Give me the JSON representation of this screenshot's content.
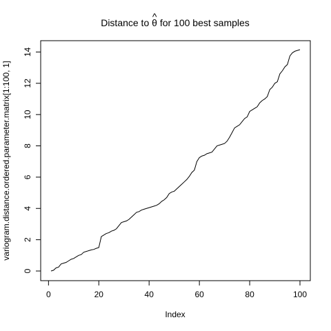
{
  "chart_data": {
    "type": "line",
    "title_prefix": "Distance to ",
    "title_symbol": "θ",
    "title_hat": "^",
    "title_suffix": " for 100 best samples",
    "xlabel": "Index",
    "ylabel": "variogram.distance.ordered.parameter.matrix[1:100, 1]",
    "xlim": [
      1,
      100
    ],
    "ylim": [
      0,
      14.15
    ],
    "xticks": [
      0,
      20,
      40,
      60,
      80,
      100
    ],
    "yticks": [
      0,
      2,
      4,
      6,
      8,
      10,
      12,
      14
    ],
    "grid": false,
    "legend": "none",
    "line_color": "#000000",
    "x": [
      1,
      2,
      3,
      4,
      5,
      6,
      7,
      8,
      9,
      10,
      11,
      12,
      13,
      14,
      15,
      16,
      17,
      18,
      19,
      20,
      21,
      22,
      23,
      24,
      25,
      26,
      27,
      28,
      29,
      30,
      31,
      32,
      33,
      34,
      35,
      36,
      37,
      38,
      39,
      40,
      41,
      42,
      43,
      44,
      45,
      46,
      47,
      48,
      49,
      50,
      51,
      52,
      53,
      54,
      55,
      56,
      57,
      58,
      59,
      60,
      61,
      62,
      63,
      64,
      65,
      66,
      67,
      68,
      69,
      70,
      71,
      72,
      73,
      74,
      75,
      76,
      77,
      78,
      79,
      80,
      81,
      82,
      83,
      84,
      85,
      86,
      87,
      88,
      89,
      90,
      91,
      92,
      93,
      94,
      95,
      96,
      97,
      98,
      99,
      100
    ],
    "y": [
      0.0,
      0.05,
      0.2,
      0.25,
      0.45,
      0.5,
      0.55,
      0.65,
      0.75,
      0.8,
      0.9,
      1.0,
      1.05,
      1.2,
      1.25,
      1.3,
      1.35,
      1.38,
      1.45,
      1.5,
      2.2,
      2.3,
      2.4,
      2.45,
      2.55,
      2.6,
      2.7,
      2.9,
      3.1,
      3.15,
      3.2,
      3.3,
      3.45,
      3.6,
      3.75,
      3.8,
      3.9,
      3.95,
      4.0,
      4.05,
      4.1,
      4.15,
      4.2,
      4.3,
      4.45,
      4.55,
      4.7,
      4.95,
      5.05,
      5.1,
      5.25,
      5.4,
      5.55,
      5.7,
      5.85,
      6.05,
      6.3,
      6.45,
      7.0,
      7.25,
      7.35,
      7.4,
      7.5,
      7.55,
      7.6,
      7.8,
      8.0,
      8.05,
      8.1,
      8.15,
      8.3,
      8.55,
      8.85,
      9.15,
      9.25,
      9.35,
      9.55,
      9.75,
      9.85,
      10.2,
      10.3,
      10.4,
      10.5,
      10.75,
      10.9,
      11.0,
      11.15,
      11.6,
      11.75,
      12.0,
      12.1,
      12.6,
      12.8,
      13.05,
      13.2,
      13.75,
      13.95,
      14.05,
      14.1,
      14.15
    ]
  }
}
